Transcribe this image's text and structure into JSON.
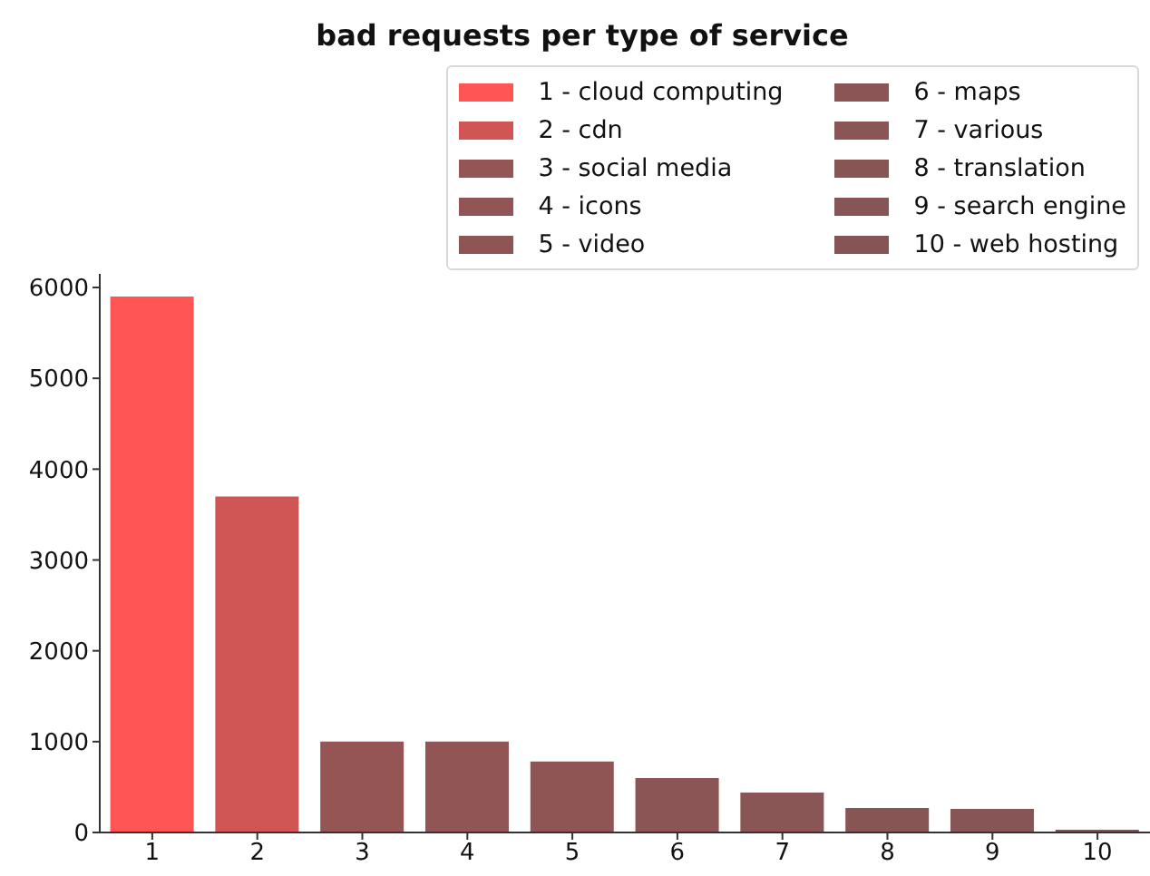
{
  "chart_data": {
    "type": "bar",
    "title": "bad requests per type of service",
    "categories": [
      "1",
      "2",
      "3",
      "4",
      "5",
      "6",
      "7",
      "8",
      "9",
      "10"
    ],
    "stacked": true,
    "series": [
      {
        "name": "1 - cloud computing",
        "color": "#ff5555",
        "values": [
          5900,
          null,
          null,
          null,
          null,
          null,
          null,
          null,
          null,
          null
        ]
      },
      {
        "name": "2 - cdn",
        "color": "#d05555",
        "values": [
          null,
          3700,
          null,
          null,
          null,
          null,
          null,
          null,
          null,
          null
        ]
      },
      {
        "name": "3 - social media",
        "color": "#955555",
        "values": [
          null,
          null,
          1000,
          null,
          null,
          null,
          null,
          null,
          null,
          null
        ]
      },
      {
        "name": "4 - icons",
        "color": "#925555",
        "values": [
          null,
          null,
          null,
          1000,
          null,
          null,
          null,
          null,
          null,
          null
        ]
      },
      {
        "name": "5 - video",
        "color": "#8f5555",
        "values": [
          null,
          null,
          null,
          null,
          780,
          null,
          null,
          null,
          null,
          null
        ]
      },
      {
        "name": "6 - maps",
        "color": "#8c5555",
        "values": [
          null,
          null,
          null,
          null,
          null,
          600,
          null,
          null,
          null,
          null
        ]
      },
      {
        "name": "7 - various",
        "color": "#8a5555",
        "values": [
          null,
          null,
          null,
          null,
          null,
          null,
          440,
          null,
          null,
          null
        ]
      },
      {
        "name": "8 - translation",
        "color": "#885555",
        "values": [
          null,
          null,
          null,
          null,
          null,
          null,
          null,
          270,
          null,
          null
        ]
      },
      {
        "name": "9 - search engine",
        "color": "#875555",
        "values": [
          null,
          null,
          null,
          null,
          null,
          null,
          null,
          null,
          260,
          null
        ]
      },
      {
        "name": "10 - web hosting",
        "color": "#855555",
        "values": [
          null,
          null,
          null,
          null,
          null,
          null,
          null,
          null,
          null,
          30
        ]
      }
    ],
    "ylim": [
      0,
      6150
    ],
    "yticks": [
      0,
      1000,
      2000,
      3000,
      4000,
      5000,
      6000
    ],
    "grid": false,
    "legend": "top right"
  }
}
